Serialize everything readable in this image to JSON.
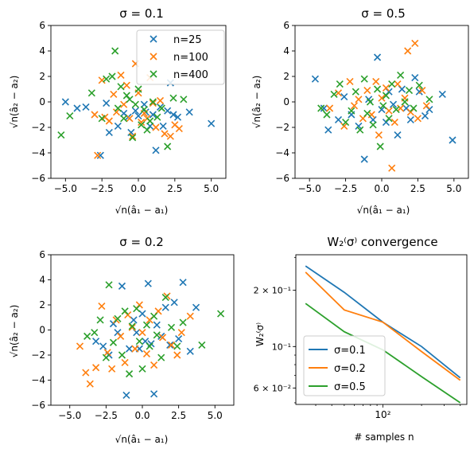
{
  "colors": {
    "n25": "#1f77b4",
    "n100": "#ff7f0e",
    "n400": "#2ca02c"
  },
  "chart_data": [
    {
      "type": "scatter",
      "title": "σ = 0.1",
      "xlabel": "√n(â₁ − a₁)",
      "ylabel": "√n(â₂ − a₂)",
      "xlim": [
        -6,
        6
      ],
      "ylim": [
        -6,
        6
      ],
      "xticks": [
        "−5.0",
        "−2.5",
        "0.0",
        "2.5",
        "5.0"
      ],
      "yticks": [
        "−6",
        "−4",
        "−2",
        "0",
        "2",
        "4",
        "6"
      ],
      "xtick_values": [
        -5,
        -2.5,
        0,
        2.5,
        5
      ],
      "ytick_values": [
        -6,
        -4,
        -2,
        0,
        2,
        4,
        6
      ],
      "legend": "top-right",
      "series": [
        {
          "name": "n=25",
          "points": [
            [
              -5.0,
              0.0
            ],
            [
              -4.2,
              -0.5
            ],
            [
              -3.6,
              -0.4
            ],
            [
              -2.6,
              -4.2
            ],
            [
              -2.2,
              -0.1
            ],
            [
              -2.0,
              -2.4
            ],
            [
              -1.4,
              -1.9
            ],
            [
              -1.0,
              -0.9
            ],
            [
              -0.7,
              -1.2
            ],
            [
              -0.5,
              -2.4
            ],
            [
              -0.2,
              -0.7
            ],
            [
              0.0,
              -1.1
            ],
            [
              0.4,
              -0.2
            ],
            [
              0.5,
              -0.8
            ],
            [
              0.8,
              -1.9
            ],
            [
              1.0,
              -1.0
            ],
            [
              1.2,
              -3.8
            ],
            [
              1.5,
              -0.4
            ],
            [
              1.7,
              -1.9
            ],
            [
              2.0,
              -0.7
            ],
            [
              2.2,
              1.5
            ],
            [
              2.4,
              -1.0
            ],
            [
              2.7,
              -1.2
            ],
            [
              3.5,
              -0.8
            ],
            [
              5.0,
              -1.7
            ]
          ]
        },
        {
          "name": "n=100",
          "points": [
            [
              -3.0,
              -1.0
            ],
            [
              -2.8,
              -4.2
            ],
            [
              -2.5,
              1.7
            ],
            [
              -2.3,
              -1.2
            ],
            [
              -2.0,
              -1.5
            ],
            [
              -1.7,
              0.6
            ],
            [
              -1.5,
              -0.8
            ],
            [
              -1.2,
              2.1
            ],
            [
              -1.0,
              -0.2
            ],
            [
              -0.8,
              1.3
            ],
            [
              -0.6,
              -1.3
            ],
            [
              -0.4,
              -2.7
            ],
            [
              -0.2,
              3.0
            ],
            [
              0.0,
              0.7
            ],
            [
              0.2,
              -1.6
            ],
            [
              0.4,
              -0.9
            ],
            [
              0.6,
              -1.3
            ],
            [
              0.8,
              1.9
            ],
            [
              1.0,
              -0.1
            ],
            [
              1.2,
              -2.0
            ],
            [
              1.5,
              0.1
            ],
            [
              1.8,
              -2.5
            ],
            [
              2.2,
              -2.7
            ],
            [
              2.5,
              -1.8
            ],
            [
              2.8,
              -2.1
            ]
          ]
        },
        {
          "name": "n=400",
          "points": [
            [
              -5.3,
              -2.6
            ],
            [
              -4.7,
              -1.1
            ],
            [
              -3.2,
              0.7
            ],
            [
              -2.5,
              -1.3
            ],
            [
              -2.2,
              1.8
            ],
            [
              -1.8,
              2.0
            ],
            [
              -1.6,
              4.0
            ],
            [
              -1.4,
              -0.5
            ],
            [
              -1.2,
              1.2
            ],
            [
              -1.0,
              -1.3
            ],
            [
              -0.8,
              0.5
            ],
            [
              -0.6,
              0.2
            ],
            [
              -0.4,
              -2.8
            ],
            [
              -0.2,
              -0.2
            ],
            [
              0.0,
              1.0
            ],
            [
              0.2,
              -1.8
            ],
            [
              0.4,
              -0.6
            ],
            [
              0.6,
              -2.2
            ],
            [
              0.8,
              -1.5
            ],
            [
              1.0,
              0.0
            ],
            [
              1.3,
              -1.2
            ],
            [
              1.6,
              -0.5
            ],
            [
              2.0,
              -3.5
            ],
            [
              2.4,
              0.3
            ],
            [
              3.1,
              0.2
            ]
          ]
        }
      ]
    },
    {
      "type": "scatter",
      "title": "σ = 0.5",
      "xlabel": "√n(â₁ − a₁)",
      "ylabel": "√n(â₂ − a₂)",
      "xlim": [
        -6,
        6
      ],
      "ylim": [
        -6,
        6
      ],
      "xticks": [
        "−5.0",
        "−2.5",
        "0.0",
        "2.5",
        "5.0"
      ],
      "yticks": [
        "−6",
        "−4",
        "−2",
        "0",
        "2",
        "4",
        "6"
      ],
      "xtick_values": [
        -5,
        -2.5,
        0,
        2.5,
        5
      ],
      "ytick_values": [
        -6,
        -4,
        -2,
        0,
        2,
        4,
        6
      ],
      "series": [
        {
          "name": "n=25",
          "points": [
            [
              -4.6,
              1.8
            ],
            [
              -4.0,
              -0.5
            ],
            [
              -3.7,
              -2.2
            ],
            [
              -3.0,
              -1.4
            ],
            [
              -2.6,
              0.4
            ],
            [
              -2.1,
              -1.0
            ],
            [
              -1.6,
              -1.9
            ],
            [
              -1.2,
              -4.5
            ],
            [
              -0.9,
              0.2
            ],
            [
              -0.6,
              -1.4
            ],
            [
              -0.3,
              3.5
            ],
            [
              0.0,
              -0.6
            ],
            [
              0.3,
              -1.6
            ],
            [
              0.5,
              0.8
            ],
            [
              0.8,
              -0.2
            ],
            [
              1.1,
              -2.6
            ],
            [
              1.4,
              1.0
            ],
            [
              1.7,
              -0.5
            ],
            [
              2.0,
              -1.4
            ],
            [
              2.3,
              1.9
            ],
            [
              2.6,
              0.8
            ],
            [
              3.0,
              -1.1
            ],
            [
              3.3,
              -0.6
            ],
            [
              4.2,
              0.6
            ],
            [
              4.9,
              -3.0
            ]
          ]
        },
        {
          "name": "n=100",
          "points": [
            [
              -3.6,
              -0.5
            ],
            [
              -3.0,
              0.7
            ],
            [
              -2.6,
              -1.9
            ],
            [
              -2.2,
              1.6
            ],
            [
              -1.9,
              -0.3
            ],
            [
              -1.6,
              0.2
            ],
            [
              -1.3,
              -1.3
            ],
            [
              -1.0,
              0.9
            ],
            [
              -0.7,
              -1.0
            ],
            [
              -0.4,
              1.6
            ],
            [
              -0.2,
              -2.6
            ],
            [
              0.0,
              0.3
            ],
            [
              0.3,
              1.1
            ],
            [
              0.5,
              -0.7
            ],
            [
              0.7,
              -5.2
            ],
            [
              0.9,
              -1.6
            ],
            [
              1.1,
              1.4
            ],
            [
              1.3,
              -0.5
            ],
            [
              1.6,
              0.3
            ],
            [
              1.8,
              4.0
            ],
            [
              2.0,
              -0.8
            ],
            [
              2.3,
              4.6
            ],
            [
              2.5,
              -1.3
            ],
            [
              2.8,
              0.9
            ],
            [
              3.1,
              -0.3
            ]
          ]
        },
        {
          "name": "n=400",
          "points": [
            [
              -4.2,
              -0.5
            ],
            [
              -3.8,
              -1.0
            ],
            [
              -3.3,
              0.6
            ],
            [
              -2.9,
              1.4
            ],
            [
              -2.5,
              -1.6
            ],
            [
              -2.1,
              -0.7
            ],
            [
              -1.8,
              0.8
            ],
            [
              -1.5,
              -2.2
            ],
            [
              -1.2,
              1.8
            ],
            [
              -1.0,
              -0.9
            ],
            [
              -0.8,
              0.0
            ],
            [
              -0.6,
              -1.8
            ],
            [
              -0.3,
              1.0
            ],
            [
              -0.1,
              -3.5
            ],
            [
              0.1,
              -0.3
            ],
            [
              0.3,
              0.5
            ],
            [
              0.5,
              -1.3
            ],
            [
              0.7,
              1.4
            ],
            [
              1.0,
              -0.6
            ],
            [
              1.3,
              2.1
            ],
            [
              1.6,
              0.0
            ],
            [
              1.9,
              0.9
            ],
            [
              2.2,
              -0.5
            ],
            [
              2.6,
              1.3
            ],
            [
              3.3,
              0.2
            ]
          ]
        }
      ]
    },
    {
      "type": "scatter",
      "title": "σ = 0.2",
      "xlabel": "√n(â₁ − a₁)",
      "ylabel": "√n(â₂ − a₂)",
      "xlim": [
        -6.3,
        6.3
      ],
      "ylim": [
        -6,
        6
      ],
      "xticks": [
        "−5.0",
        "−2.5",
        "0.0",
        "2.5",
        "5.0"
      ],
      "yticks": [
        "−6",
        "−4",
        "−2",
        "0",
        "2",
        "4",
        "6"
      ],
      "xtick_values": [
        -5,
        -2.5,
        0,
        2.5,
        5
      ],
      "ytick_values": [
        -6,
        -4,
        -2,
        0,
        2,
        4,
        6
      ],
      "series": [
        {
          "name": "n=25",
          "points": [
            [
              -3.2,
              -0.9
            ],
            [
              -2.7,
              -1.3
            ],
            [
              -2.3,
              -2.0
            ],
            [
              -2.0,
              0.5
            ],
            [
              -1.7,
              -0.2
            ],
            [
              -1.4,
              3.5
            ],
            [
              -1.1,
              -5.2
            ],
            [
              -0.9,
              -1.5
            ],
            [
              -0.6,
              0.8
            ],
            [
              -0.4,
              -0.2
            ],
            [
              -0.2,
              -1.5
            ],
            [
              0.0,
              1.3
            ],
            [
              0.2,
              -0.9
            ],
            [
              0.4,
              3.7
            ],
            [
              0.6,
              -1.1
            ],
            [
              0.8,
              -5.1
            ],
            [
              1.0,
              0.4
            ],
            [
              1.3,
              -0.5
            ],
            [
              1.6,
              1.8
            ],
            [
              1.9,
              -1.2
            ],
            [
              2.2,
              2.2
            ],
            [
              2.5,
              -0.7
            ],
            [
              2.8,
              3.8
            ],
            [
              3.3,
              -1.7
            ],
            [
              3.7,
              1.8
            ]
          ]
        },
        {
          "name": "n=100",
          "points": [
            [
              -4.3,
              -1.3
            ],
            [
              -3.9,
              -3.4
            ],
            [
              -3.6,
              -4.3
            ],
            [
              -3.2,
              -3.0
            ],
            [
              -2.8,
              1.9
            ],
            [
              -2.4,
              -1.8
            ],
            [
              -2.1,
              -3.1
            ],
            [
              -1.8,
              0.8
            ],
            [
              -1.5,
              -0.5
            ],
            [
              -1.2,
              -2.6
            ],
            [
              -1.0,
              1.2
            ],
            [
              -0.7,
              0.2
            ],
            [
              -0.5,
              -1.5
            ],
            [
              -0.2,
              2.0
            ],
            [
              0.0,
              -0.2
            ],
            [
              0.3,
              -1.9
            ],
            [
              0.5,
              0.8
            ],
            [
              0.8,
              -2.8
            ],
            [
              1.1,
              1.5
            ],
            [
              1.4,
              -0.6
            ],
            [
              1.7,
              2.7
            ],
            [
              2.0,
              -1.2
            ],
            [
              2.4,
              -2.0
            ],
            [
              2.7,
              -0.2
            ],
            [
              3.3,
              1.1
            ]
          ]
        },
        {
          "name": "n=400",
          "points": [
            [
              -3.8,
              -0.5
            ],
            [
              -3.3,
              -0.2
            ],
            [
              -2.9,
              0.8
            ],
            [
              -2.5,
              -2.2
            ],
            [
              -2.3,
              3.6
            ],
            [
              -2.0,
              -1.0
            ],
            [
              -1.7,
              0.9
            ],
            [
              -1.4,
              -2.0
            ],
            [
              -1.2,
              1.5
            ],
            [
              -0.9,
              -3.5
            ],
            [
              -0.7,
              0.3
            ],
            [
              -0.4,
              1.7
            ],
            [
              -0.2,
              -0.9
            ],
            [
              0.0,
              -3.1
            ],
            [
              0.3,
              0.4
            ],
            [
              0.5,
              -1.3
            ],
            [
              0.8,
              1.1
            ],
            [
              1.0,
              -0.4
            ],
            [
              1.3,
              -2.2
            ],
            [
              1.6,
              2.6
            ],
            [
              2.0,
              0.2
            ],
            [
              2.4,
              -1.3
            ],
            [
              2.8,
              0.6
            ],
            [
              4.1,
              -1.2
            ],
            [
              5.4,
              1.3
            ]
          ]
        }
      ]
    },
    {
      "type": "line",
      "title": "W₂⁽σ⁾ convergence",
      "xlabel": "# samples n",
      "ylabel": "W₂⁽σ⁾",
      "xscale": "log",
      "yscale": "log",
      "xlim": [
        21,
        450
      ],
      "ylim": [
        0.049,
        0.31
      ],
      "x": [
        25,
        50,
        100,
        200,
        400
      ],
      "xticks": [
        {
          "value": 100,
          "label": "10²"
        }
      ],
      "yticks": [
        {
          "value": 0.06,
          "label": "6 × 10⁻²"
        },
        {
          "value": 0.1,
          "label": "10⁻¹"
        },
        {
          "value": 0.2,
          "label": "2 × 10⁻¹"
        }
      ],
      "legend": "lower-left",
      "series": [
        {
          "name": "σ=0.1",
          "color": "#1f77b4",
          "values": [
            0.27,
            0.195,
            0.135,
            0.1,
            0.068
          ]
        },
        {
          "name": "σ=0.2",
          "color": "#ff7f0e",
          "values": [
            0.25,
            0.157,
            0.135,
            0.094,
            0.066
          ]
        },
        {
          "name": "σ=0.5",
          "color": "#2ca02c",
          "values": [
            0.17,
            0.12,
            0.096,
            0.069,
            0.05
          ]
        }
      ]
    }
  ]
}
